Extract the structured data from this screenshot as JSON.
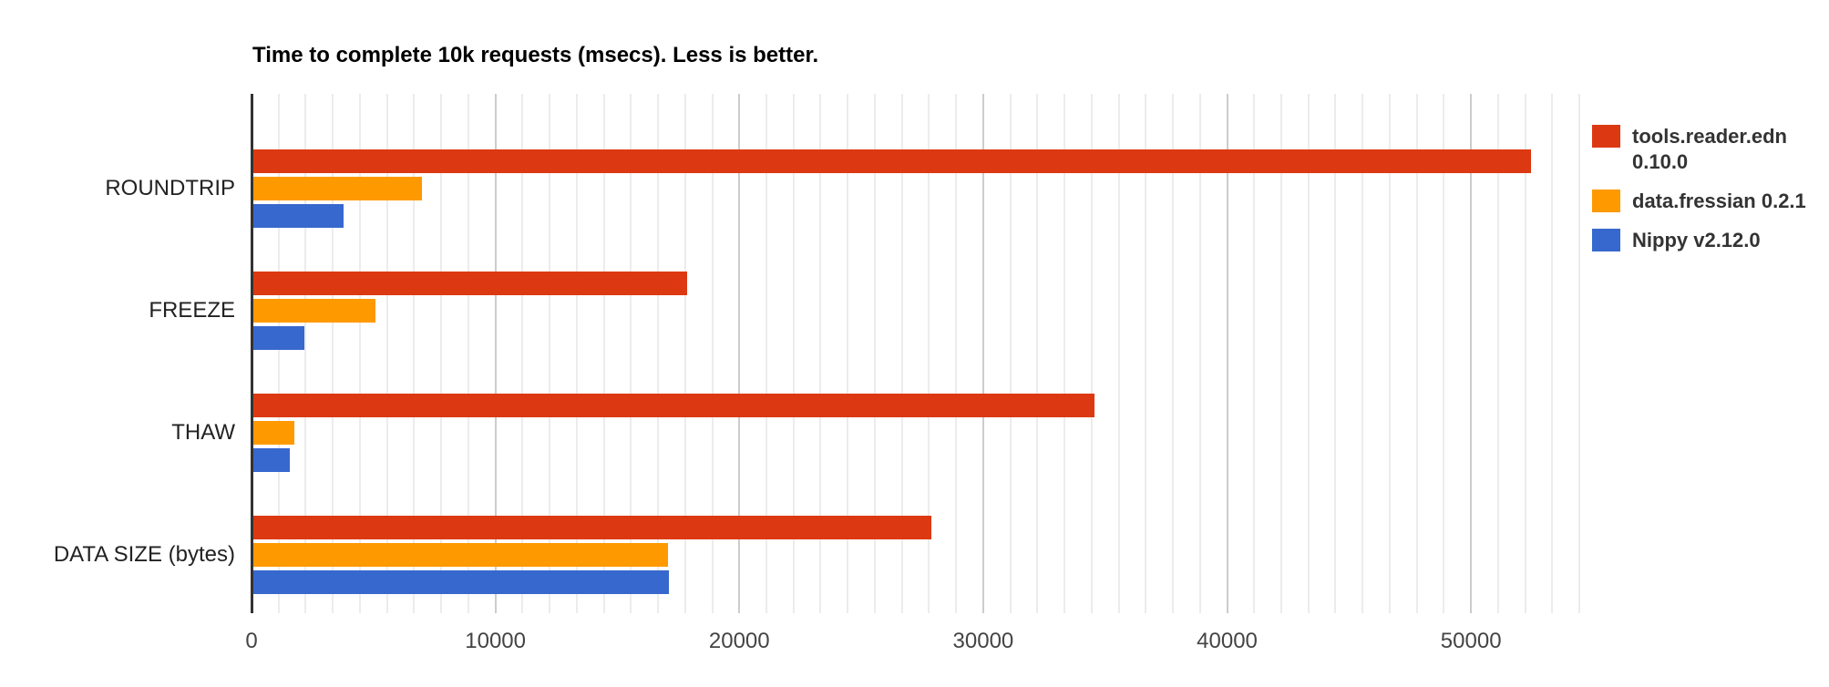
{
  "chart_data": {
    "type": "bar",
    "orientation": "horizontal",
    "title": "Time to complete 10k requests (msecs). Less is better.",
    "xlabel": "",
    "ylabel": "",
    "categories": [
      "ROUNDTRIP",
      "FREEZE",
      "THAW",
      "DATA SIZE (bytes)"
    ],
    "series": [
      {
        "name": "tools.reader.edn 0.10.0",
        "color": "#dc3912",
        "values": [
          52400,
          17800,
          34500,
          27800
        ]
      },
      {
        "name": "data.fressian 0.2.1",
        "color": "#ff9900",
        "values": [
          6900,
          5000,
          1700,
          17000
        ]
      },
      {
        "name": "Nippy v2.12.0",
        "color": "#3768cd",
        "values": [
          3700,
          2100,
          1500,
          17050
        ]
      }
    ],
    "xlim": [
      0,
      55000
    ],
    "xticks": [
      0,
      10000,
      20000,
      30000,
      40000,
      50000
    ],
    "xtick_labels": [
      "0",
      "10000",
      "20000",
      "30000",
      "40000",
      "50000"
    ],
    "grid": true,
    "legend_position": "right"
  }
}
